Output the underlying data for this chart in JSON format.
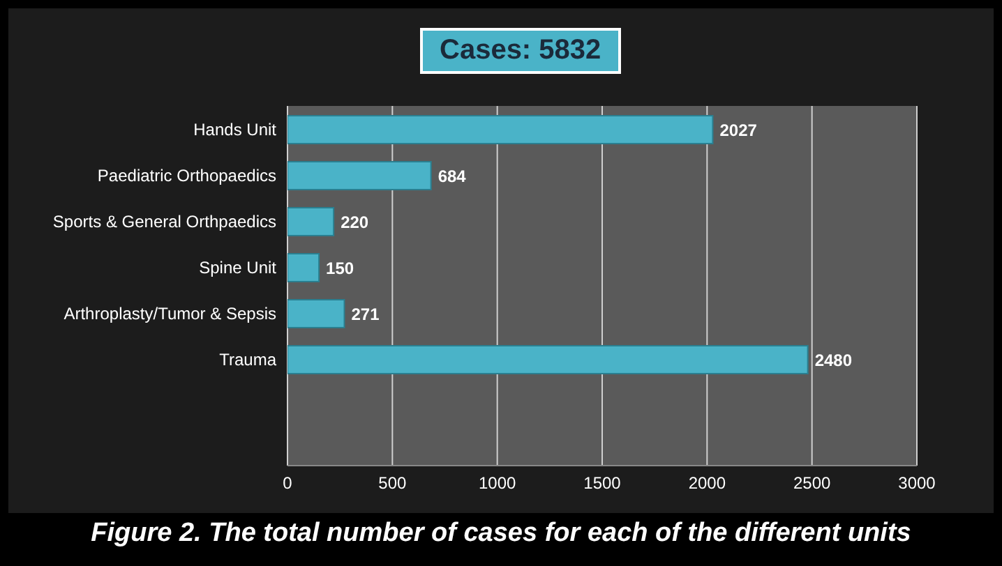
{
  "chart_data": {
    "type": "bar",
    "orientation": "horizontal",
    "title": "Cases: 5832",
    "categories": [
      "Hands Unit",
      "Paediatric Orthopaedics",
      "Sports & General Orthpaedics",
      "Spine Unit",
      "Arthroplasty/Tumor & Sepsis",
      "Trauma"
    ],
    "values": [
      2027,
      684,
      220,
      150,
      271,
      2480
    ],
    "color": "#4ab3c8",
    "xlim": [
      0,
      3000
    ],
    "xticks": [
      0,
      500,
      1000,
      1500,
      2000,
      2500,
      3000
    ],
    "grid": "x",
    "data_labels": true,
    "annotations": [
      "Figure 2. The total number of cases for  each of the different units"
    ]
  }
}
